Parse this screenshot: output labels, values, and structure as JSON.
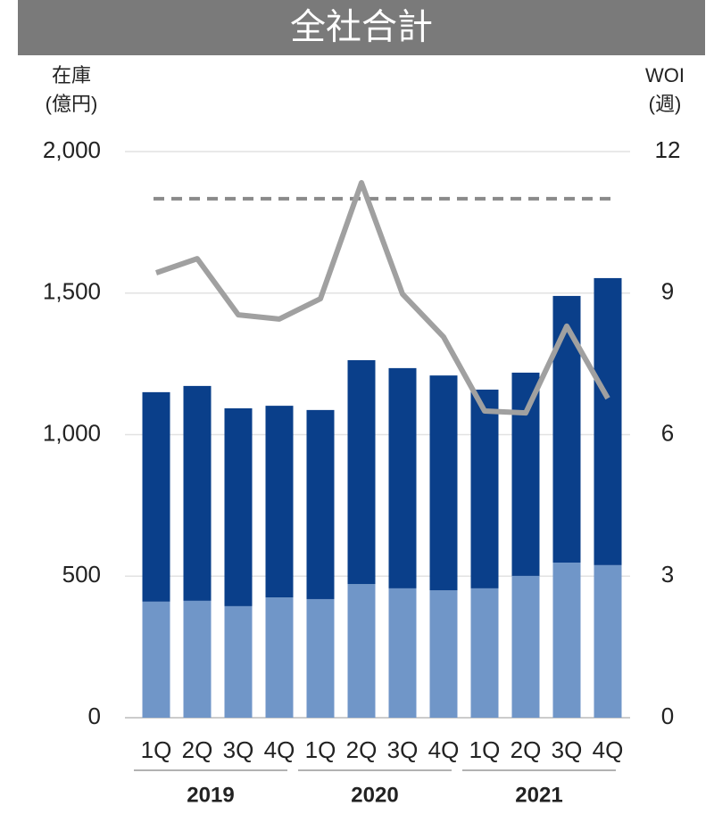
{
  "chart_data": {
    "type": "bar",
    "title": "全社合計",
    "y_label": [
      "在庫",
      "(億円)"
    ],
    "y2_label": [
      "WOI",
      "(週)"
    ],
    "categories": [
      "1Q",
      "2Q",
      "3Q",
      "4Q",
      "1Q",
      "2Q",
      "3Q",
      "4Q",
      "1Q",
      "2Q",
      "3Q",
      "4Q"
    ],
    "groups": [
      "2019",
      "2020",
      "2021"
    ],
    "stacked": true,
    "series": [
      {
        "color": "#7096c8",
        "values": [
          410,
          413,
          394,
          425,
          419,
          472,
          457,
          450,
          457,
          501,
          548,
          539
        ]
      },
      {
        "color": "#0a3f8a",
        "values": [
          740,
          759,
          699,
          677,
          668,
          791,
          778,
          759,
          702,
          718,
          942,
          1014
        ]
      },
      {
        "type": "line",
        "axis": "y2",
        "color": "#a0a0a0",
        "values": [
          9.43,
          9.73,
          8.54,
          8.45,
          8.88,
          11.34,
          8.98,
          8.07,
          6.5,
          6.46,
          8.3,
          6.77
        ]
      }
    ],
    "reference_line": {
      "axis": "y2",
      "value": 11,
      "color": "#8a8a8a",
      "dashed": true
    },
    "ylim": [
      0,
      2000
    ],
    "yticks": [
      0,
      {
        "value": 500,
        "label": "500"
      },
      {
        "value": 1000,
        "label": "1,000"
      },
      {
        "value": 1500,
        "label": "1,500"
      },
      {
        "value": 2000,
        "label": "2,000"
      }
    ],
    "y2lim": [
      0,
      12
    ],
    "y2ticks": [
      0,
      3,
      6,
      9,
      12
    ],
    "grid": true
  }
}
